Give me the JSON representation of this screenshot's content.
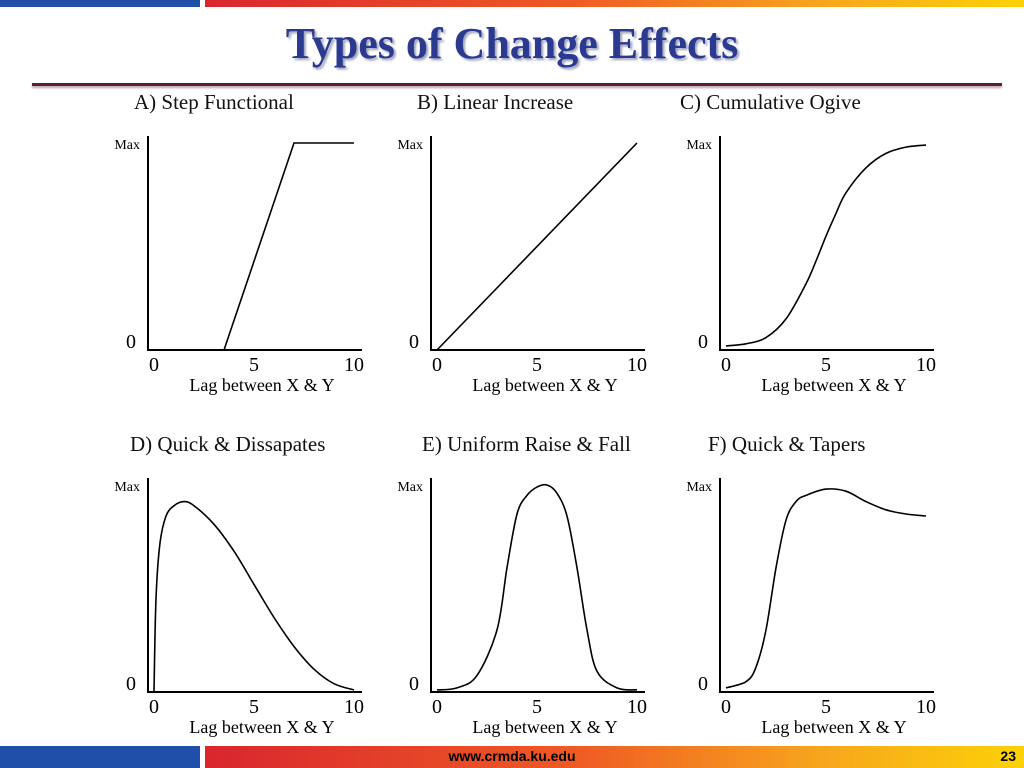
{
  "slide": {
    "title": "Types of Change Effects",
    "footer_url": "www.crmda.ku.edu",
    "page_number": "23",
    "colors": {
      "title": "#2b3990",
      "bar_blue": "#1f4fa8",
      "bar_red": "#d9262e",
      "bar_yellow": "#fcd207",
      "rule": "#5a1f34"
    }
  },
  "chart_data": [
    {
      "type": "line",
      "title": "A) Step Functional",
      "xlabel": "Lag between X & Y",
      "xticks": [
        "0",
        "5",
        "10"
      ],
      "yticks": [
        "0",
        "Max"
      ],
      "xlim": [
        0,
        10
      ],
      "ylim": [
        0,
        1
      ],
      "series": [
        {
          "x": [
            0,
            3.5,
            7,
            10
          ],
          "y": [
            0,
            0,
            1,
            1
          ]
        }
      ]
    },
    {
      "type": "line",
      "title": "B) Linear Increase",
      "xlabel": "Lag between X & Y",
      "xticks": [
        "0",
        "5",
        "10"
      ],
      "yticks": [
        "0",
        "Max"
      ],
      "xlim": [
        0,
        10
      ],
      "ylim": [
        0,
        1
      ],
      "series": [
        {
          "x": [
            0,
            10
          ],
          "y": [
            0,
            1
          ]
        }
      ]
    },
    {
      "type": "line",
      "title": "C) Cumulative Ogive",
      "xlabel": "Lag between X & Y",
      "xticks": [
        "0",
        "5",
        "10"
      ],
      "yticks": [
        "0",
        "Max"
      ],
      "xlim": [
        0,
        10
      ],
      "ylim": [
        0,
        1
      ],
      "series": [
        {
          "x": [
            0,
            1,
            2,
            3,
            4,
            4.5,
            5,
            5.5,
            6,
            7,
            8,
            9,
            10
          ],
          "y": [
            0.02,
            0.03,
            0.06,
            0.15,
            0.32,
            0.43,
            0.55,
            0.66,
            0.76,
            0.88,
            0.95,
            0.98,
            0.99
          ]
        }
      ]
    },
    {
      "type": "line",
      "title": "D) Quick & Dissapates",
      "xlabel": "Lag between X & Y",
      "xticks": [
        "0",
        "5",
        "10"
      ],
      "yticks": [
        "0",
        "Max"
      ],
      "xlim": [
        0,
        10
      ],
      "ylim": [
        0,
        1
      ],
      "series": [
        {
          "x": [
            0,
            0.1,
            0.3,
            0.6,
            1,
            1.5,
            2,
            3,
            4,
            5,
            6,
            7,
            8,
            9,
            10
          ],
          "y": [
            0,
            0.45,
            0.72,
            0.85,
            0.9,
            0.92,
            0.9,
            0.81,
            0.68,
            0.52,
            0.36,
            0.22,
            0.11,
            0.04,
            0.01
          ]
        }
      ]
    },
    {
      "type": "line",
      "title": "E) Uniform Raise & Fall",
      "xlabel": "Lag between X & Y",
      "xticks": [
        "0",
        "5",
        "10"
      ],
      "yticks": [
        "0",
        "Max"
      ],
      "xlim": [
        0,
        10
      ],
      "ylim": [
        0,
        1
      ],
      "series": [
        {
          "x": [
            0,
            1,
            2,
            3,
            3.5,
            4,
            4.5,
            5,
            5.5,
            6,
            6.5,
            7,
            7.5,
            8,
            9,
            10
          ],
          "y": [
            0.01,
            0.02,
            0.08,
            0.3,
            0.6,
            0.86,
            0.95,
            0.99,
            1,
            0.96,
            0.85,
            0.6,
            0.3,
            0.1,
            0.02,
            0.01
          ]
        }
      ]
    },
    {
      "type": "line",
      "title": "F) Quick & Tapers",
      "xlabel": "Lag between X & Y",
      "xticks": [
        "0",
        "5",
        "10"
      ],
      "yticks": [
        "0",
        "Max"
      ],
      "xlim": [
        0,
        10
      ],
      "ylim": [
        0,
        1
      ],
      "series": [
        {
          "x": [
            0,
            1,
            1.5,
            2,
            2.5,
            3,
            3.5,
            4,
            5,
            6,
            7,
            8,
            9,
            10
          ],
          "y": [
            0.02,
            0.05,
            0.12,
            0.3,
            0.6,
            0.83,
            0.92,
            0.95,
            0.98,
            0.97,
            0.92,
            0.88,
            0.86,
            0.85
          ]
        }
      ]
    }
  ]
}
